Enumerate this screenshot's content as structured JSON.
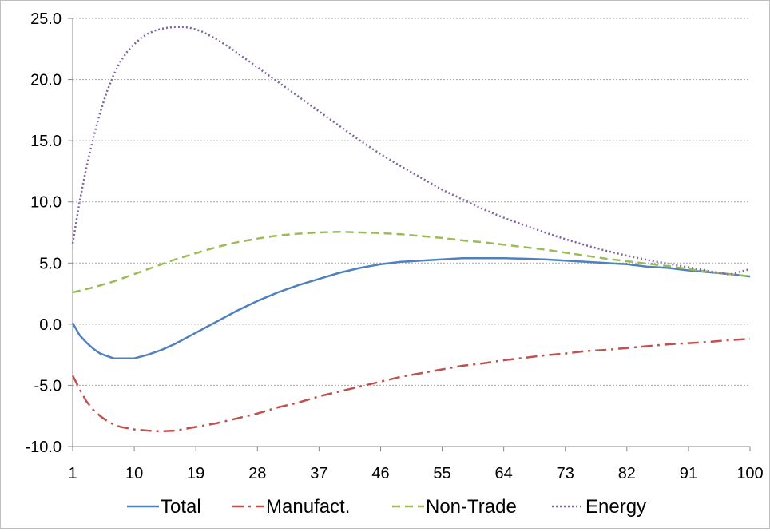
{
  "chart_data": {
    "type": "line",
    "title": "",
    "xlabel": "",
    "ylabel": "",
    "ylim": [
      -10,
      25
    ],
    "xlim": [
      1,
      100
    ],
    "y_ticks": [
      "25.0",
      "20.0",
      "15.0",
      "10.0",
      "5.0",
      "0.0",
      "-5.0",
      "-10.0"
    ],
    "x_ticks": [
      "1",
      "10",
      "19",
      "28",
      "37",
      "46",
      "55",
      "64",
      "73",
      "82",
      "91",
      "100"
    ],
    "grid": "horizontal dashed",
    "legend_position": "bottom",
    "series": [
      {
        "name": "Total",
        "color": "#4f81bd",
        "dash": "solid",
        "x": [
          1,
          2,
          3,
          4,
          5,
          6,
          7,
          8,
          9,
          10,
          12,
          14,
          16,
          18,
          20,
          22,
          25,
          28,
          31,
          34,
          37,
          40,
          43,
          46,
          49,
          52,
          55,
          58,
          61,
          64,
          67,
          70,
          73,
          76,
          79,
          82,
          85,
          88,
          91,
          94,
          97,
          100
        ],
        "y": [
          0.1,
          -0.9,
          -1.5,
          -2.0,
          -2.4,
          -2.6,
          -2.8,
          -2.8,
          -2.8,
          -2.8,
          -2.5,
          -2.1,
          -1.6,
          -1.0,
          -0.4,
          0.2,
          1.1,
          1.9,
          2.6,
          3.2,
          3.7,
          4.2,
          4.6,
          4.9,
          5.1,
          5.2,
          5.3,
          5.4,
          5.4,
          5.4,
          5.35,
          5.3,
          5.2,
          5.1,
          5.0,
          4.9,
          4.7,
          4.6,
          4.4,
          4.25,
          4.1,
          3.9
        ]
      },
      {
        "name": "Manufact.",
        "color": "#c0504d",
        "dash": "dash-dot",
        "x": [
          1,
          2,
          3,
          4,
          5,
          6,
          7,
          8,
          9,
          10,
          12,
          14,
          16,
          18,
          20,
          22,
          25,
          28,
          31,
          34,
          37,
          40,
          43,
          46,
          49,
          52,
          55,
          58,
          61,
          64,
          67,
          70,
          73,
          76,
          79,
          82,
          85,
          88,
          91,
          94,
          97,
          100
        ],
        "y": [
          -4.2,
          -5.3,
          -6.3,
          -7.0,
          -7.5,
          -7.9,
          -8.2,
          -8.4,
          -8.5,
          -8.6,
          -8.7,
          -8.75,
          -8.7,
          -8.5,
          -8.3,
          -8.1,
          -7.7,
          -7.3,
          -6.8,
          -6.4,
          -5.9,
          -5.5,
          -5.1,
          -4.7,
          -4.3,
          -4.0,
          -3.7,
          -3.4,
          -3.2,
          -2.95,
          -2.75,
          -2.55,
          -2.4,
          -2.2,
          -2.1,
          -1.95,
          -1.8,
          -1.65,
          -1.55,
          -1.45,
          -1.3,
          -1.2
        ]
      },
      {
        "name": "Non-Trade",
        "color": "#9bbb59",
        "dash": "dashed",
        "x": [
          1,
          4,
          7,
          10,
          13,
          16,
          19,
          22,
          25,
          28,
          31,
          34,
          37,
          40,
          43,
          46,
          49,
          52,
          55,
          58,
          61,
          64,
          67,
          70,
          73,
          76,
          79,
          82,
          85,
          88,
          91,
          94,
          97,
          100
        ],
        "y": [
          2.6,
          3.0,
          3.5,
          4.1,
          4.7,
          5.3,
          5.8,
          6.3,
          6.7,
          7.0,
          7.25,
          7.4,
          7.5,
          7.55,
          7.5,
          7.45,
          7.35,
          7.2,
          7.05,
          6.85,
          6.7,
          6.5,
          6.3,
          6.1,
          5.85,
          5.6,
          5.35,
          5.15,
          4.95,
          4.75,
          4.5,
          4.3,
          4.1,
          3.9
        ]
      },
      {
        "name": "Energy",
        "color": "#8064a2",
        "dash": "dotted",
        "x": [
          1,
          2,
          3,
          4,
          5,
          6,
          7,
          8,
          9,
          10,
          11,
          12,
          13,
          14,
          15,
          16,
          17,
          18,
          19,
          20,
          22,
          24,
          26,
          28,
          31,
          34,
          37,
          40,
          43,
          46,
          49,
          52,
          55,
          58,
          61,
          64,
          67,
          70,
          73,
          76,
          79,
          82,
          85,
          88,
          91,
          94,
          97,
          100
        ],
        "y": [
          6.6,
          10.0,
          12.8,
          15.2,
          17.3,
          19.0,
          20.4,
          21.5,
          22.3,
          22.9,
          23.4,
          23.75,
          24.0,
          24.15,
          24.25,
          24.3,
          24.3,
          24.25,
          24.1,
          23.9,
          23.3,
          22.6,
          21.8,
          21.0,
          19.8,
          18.6,
          17.4,
          16.2,
          15.0,
          13.9,
          12.9,
          11.95,
          11.0,
          10.2,
          9.4,
          8.7,
          8.1,
          7.5,
          6.95,
          6.45,
          6.0,
          5.6,
          5.25,
          4.95,
          4.65,
          4.35,
          4.05,
          4.5
        ]
      }
    ]
  }
}
